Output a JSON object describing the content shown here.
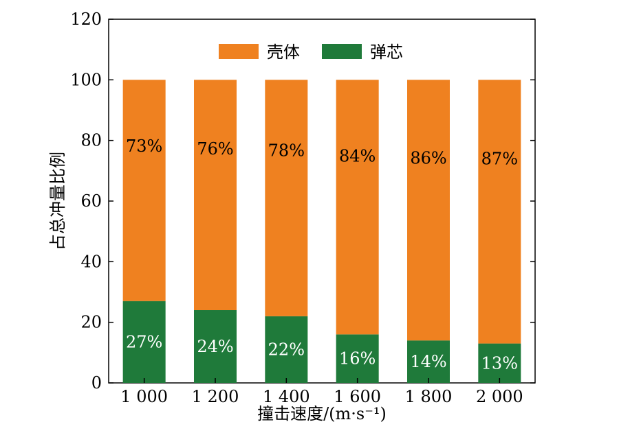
{
  "chart_data": {
    "type": "bar",
    "stacked": true,
    "categories": [
      "1 000",
      "1 200",
      "1 400",
      "1 600",
      "1 800",
      "2 000"
    ],
    "series": [
      {
        "name": "弹芯",
        "color": "#1f7a3a",
        "values": [
          27,
          24,
          22,
          16,
          14,
          13
        ],
        "labels": [
          "27%",
          "24%",
          "22%",
          "16%",
          "14%",
          "13%"
        ]
      },
      {
        "name": "壳体",
        "color": "#ef8120",
        "values": [
          73,
          76,
          78,
          84,
          86,
          87
        ],
        "labels": [
          "73%",
          "76%",
          "78%",
          "84%",
          "86%",
          "87%"
        ]
      }
    ],
    "title": "",
    "xlabel": "撞击速度/(m·s⁻¹)",
    "ylabel": "占总冲量比例",
    "ylim": [
      0,
      120
    ],
    "yticks": [
      0,
      20,
      40,
      60,
      80,
      100,
      120
    ],
    "legend": {
      "position": "top-center"
    },
    "grid": false
  }
}
